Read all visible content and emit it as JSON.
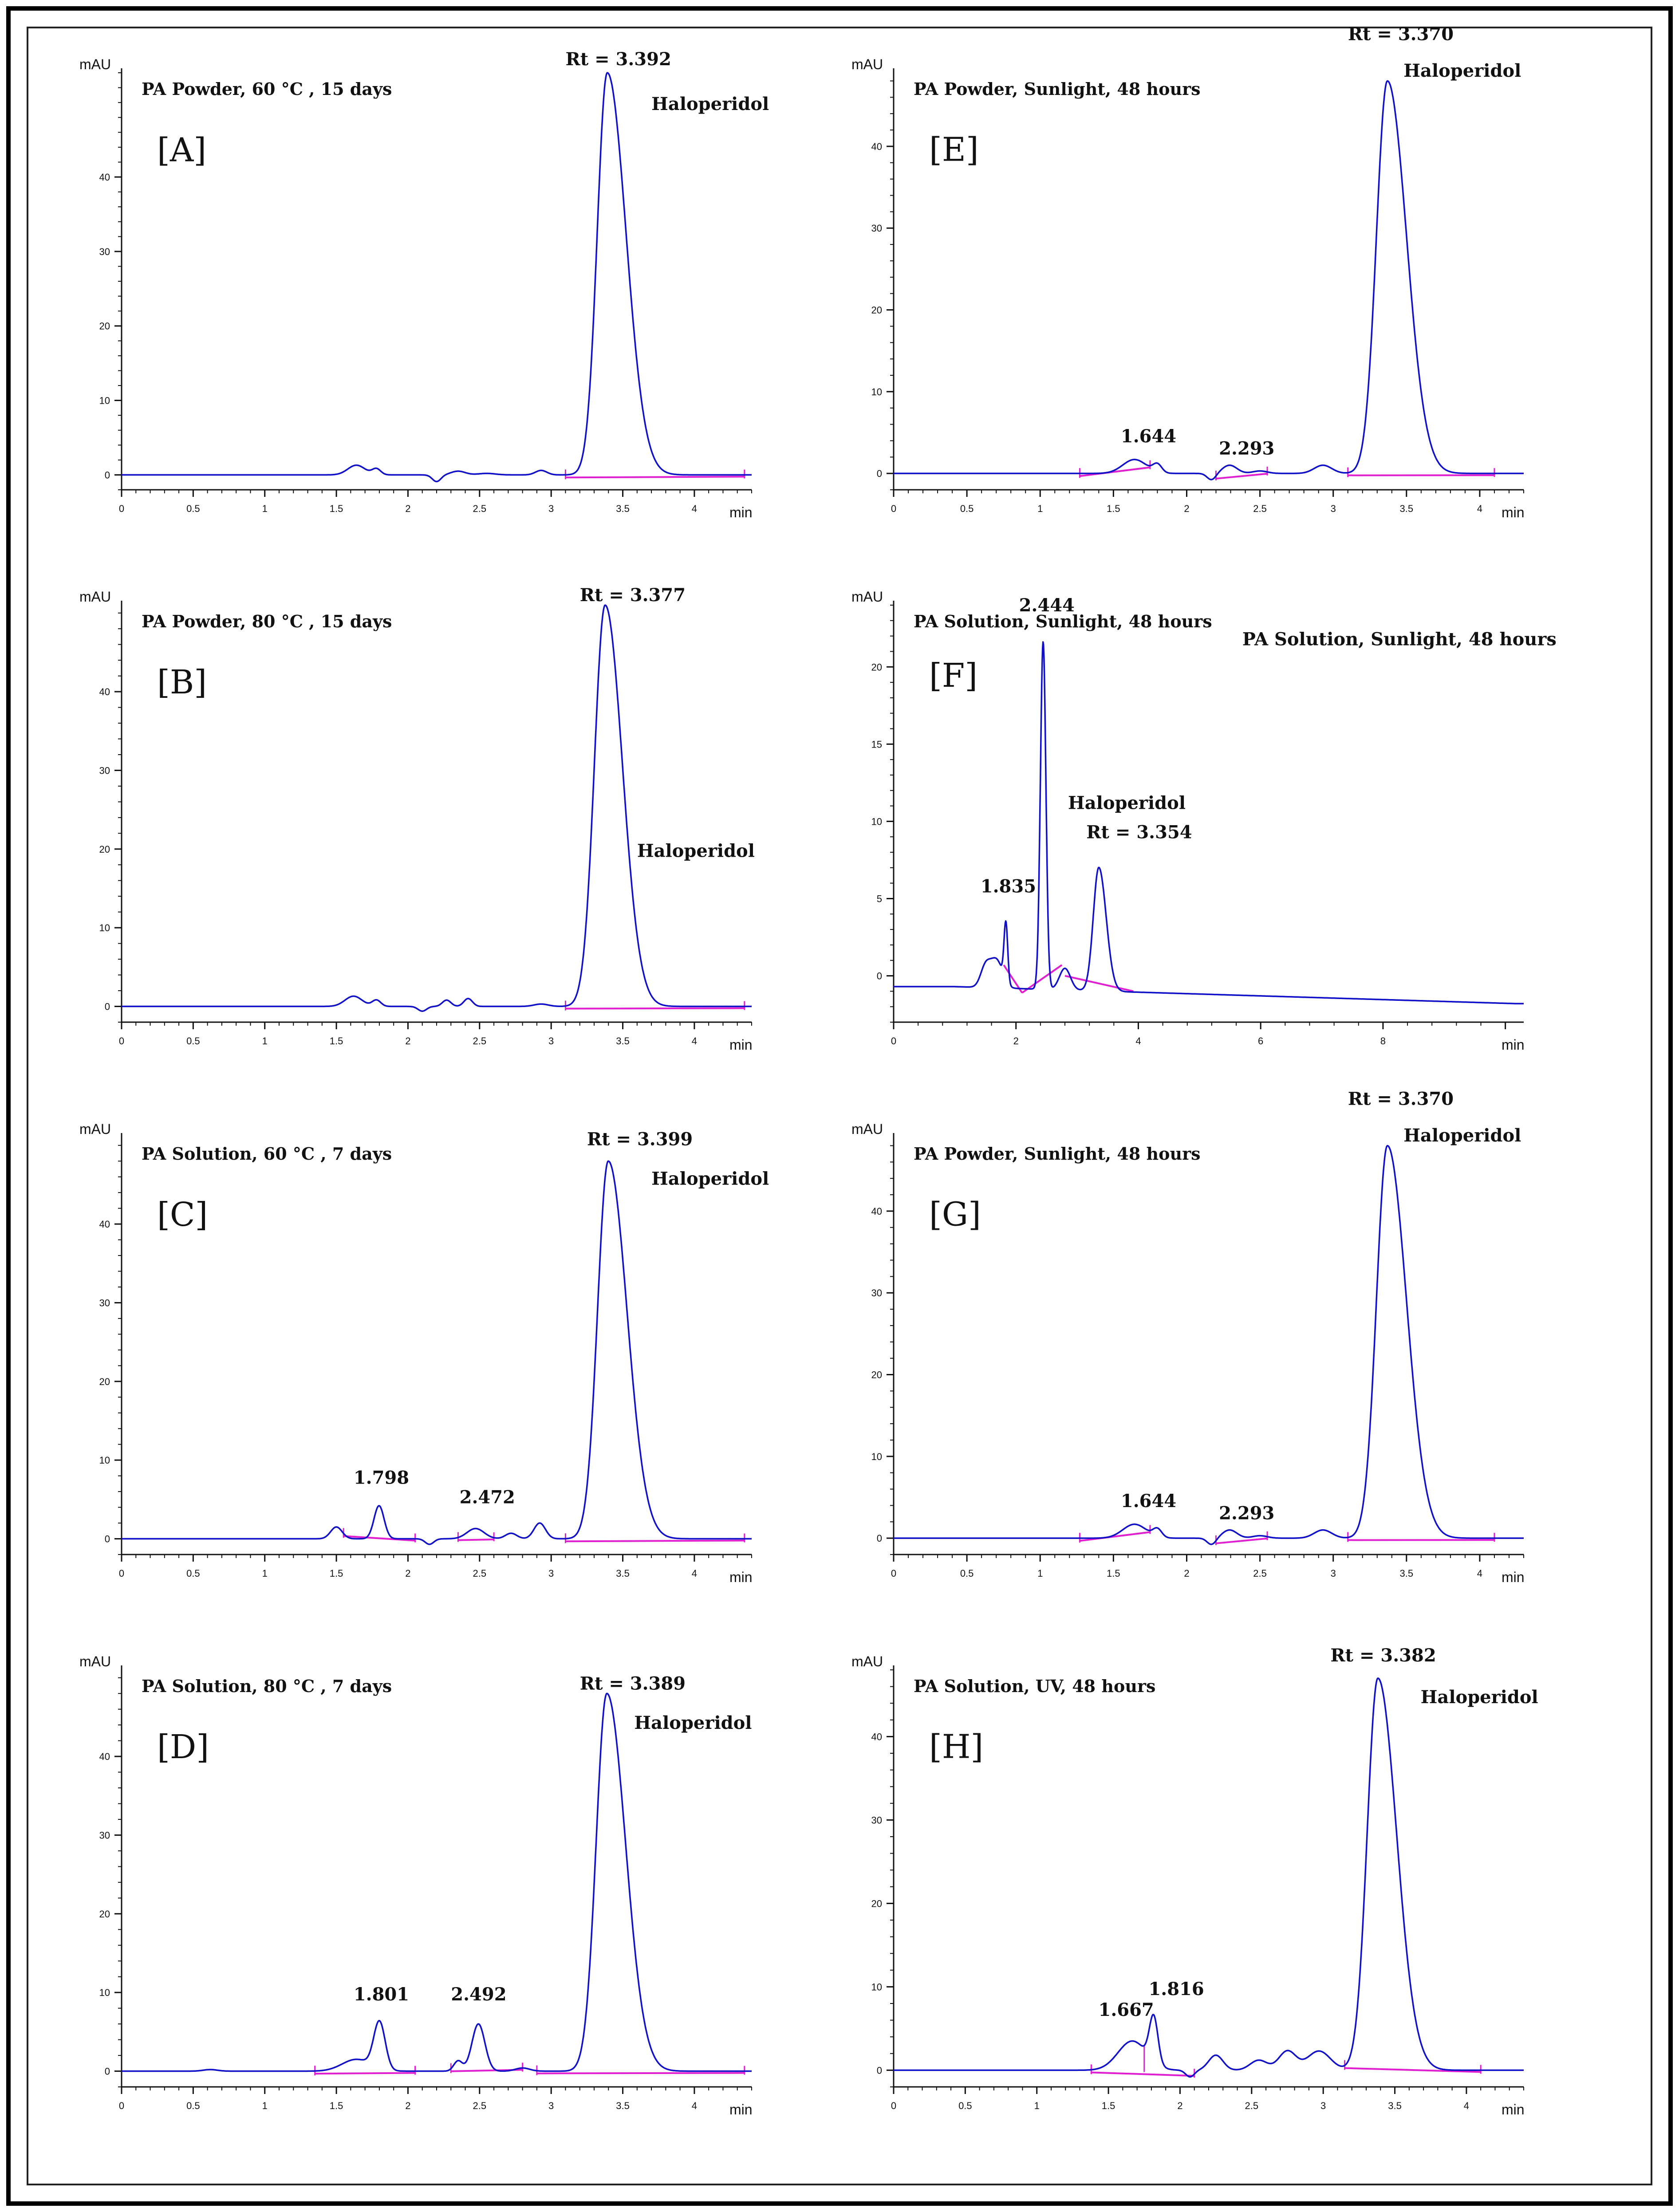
{
  "colors": {
    "trace": "#1010c8",
    "baseline": "#e020d0",
    "axis": "#111111",
    "text": "#111111"
  },
  "common": {
    "y_unit": "mAU",
    "x_unit": "min",
    "analyte": "Haloperidol",
    "rt_prefix": "Rt = "
  },
  "chart_data": [
    {
      "id": "A",
      "type": "line",
      "panel_label": "[A]",
      "title": "PA Powder, 60 °C , 15 days",
      "xlim": [
        0,
        4.4
      ],
      "ylim": [
        -2,
        54
      ],
      "xticks": [
        0,
        0.5,
        1,
        1.5,
        2,
        2.5,
        3,
        3.5,
        4
      ],
      "xtick_labels": [
        "0",
        "0.5",
        "1",
        "1.5",
        "2",
        "2.5",
        "3",
        "3.5",
        "4"
      ],
      "yticks": [
        0,
        10,
        20,
        30,
        40
      ],
      "ytick_labels": [
        "0",
        "10",
        "20",
        "30",
        "40"
      ],
      "baseline_value": 0,
      "drift": 0,
      "peaks": [
        {
          "rt": 1.64,
          "h": 1.3,
          "w": 0.06
        },
        {
          "rt": 1.78,
          "h": 0.8,
          "w": 0.03
        },
        {
          "rt": 2.2,
          "h": -0.9,
          "w": 0.03
        },
        {
          "rt": 2.35,
          "h": 0.5,
          "w": 0.05
        },
        {
          "rt": 2.55,
          "h": 0.2,
          "w": 0.06
        },
        {
          "rt": 2.93,
          "h": 0.6,
          "w": 0.04
        },
        {
          "rt": 3.392,
          "h": 54,
          "w": 0.07,
          "tail": 0.13
        }
      ],
      "integrations": [
        [
          3.1,
          4.35
        ]
      ],
      "annotations": [
        {
          "text": "Rt = 3.392",
          "x": 3.1,
          "y": 55,
          "size": 1.0
        },
        {
          "text": "Haloperidol",
          "x": 3.7,
          "y": 49,
          "size": 1.0
        }
      ]
    },
    {
      "id": "B",
      "type": "line",
      "panel_label": "[B]",
      "title": "PA Powder, 80 °C , 15 days",
      "xlim": [
        0,
        4.4
      ],
      "ylim": [
        -2,
        51
      ],
      "xticks": [
        0,
        0.5,
        1,
        1.5,
        2,
        2.5,
        3,
        3.5,
        4
      ],
      "xtick_labels": [
        "0",
        "0.5",
        "1",
        "1.5",
        "2",
        "2.5",
        "3",
        "3.5",
        "4"
      ],
      "yticks": [
        0,
        10,
        20,
        30,
        40
      ],
      "ytick_labels": [
        "0",
        "10",
        "20",
        "30",
        "40"
      ],
      "baseline_value": 0,
      "drift": 0,
      "peaks": [
        {
          "rt": 1.62,
          "h": 1.3,
          "w": 0.06
        },
        {
          "rt": 1.78,
          "h": 0.8,
          "w": 0.03
        },
        {
          "rt": 2.1,
          "h": -0.6,
          "w": 0.03
        },
        {
          "rt": 2.27,
          "h": 0.8,
          "w": 0.03
        },
        {
          "rt": 2.42,
          "h": 1.0,
          "w": 0.03
        },
        {
          "rt": 2.93,
          "h": 0.3,
          "w": 0.05
        },
        {
          "rt": 3.377,
          "h": 51,
          "w": 0.075,
          "tail": 0.12
        }
      ],
      "integrations": [
        [
          3.1,
          4.35
        ]
      ],
      "annotations": [
        {
          "text": "Rt = 3.377",
          "x": 3.2,
          "y": 51.5,
          "size": 1.0
        },
        {
          "text": "Haloperidol",
          "x": 3.6,
          "y": 19,
          "size": 1.0
        }
      ]
    },
    {
      "id": "C",
      "type": "line",
      "panel_label": "[C]",
      "title": "PA Solution, 60 °C , 7 days",
      "xlim": [
        0,
        4.4
      ],
      "ylim": [
        -2,
        51
      ],
      "xticks": [
        0,
        0.5,
        1,
        1.5,
        2,
        2.5,
        3,
        3.5,
        4
      ],
      "xtick_labels": [
        "0",
        "0.5",
        "1",
        "1.5",
        "2",
        "2.5",
        "3",
        "3.5",
        "4"
      ],
      "yticks": [
        0,
        10,
        20,
        30,
        40
      ],
      "ytick_labels": [
        "0",
        "10",
        "20",
        "30",
        "40"
      ],
      "baseline_value": 0,
      "drift": 0,
      "peaks": [
        {
          "rt": 1.5,
          "h": 1.5,
          "w": 0.04
        },
        {
          "rt": 1.798,
          "h": 4.2,
          "w": 0.035
        },
        {
          "rt": 2.15,
          "h": -0.7,
          "w": 0.03
        },
        {
          "rt": 2.472,
          "h": 1.3,
          "w": 0.06
        },
        {
          "rt": 2.72,
          "h": 0.7,
          "w": 0.04
        },
        {
          "rt": 2.92,
          "h": 2.0,
          "w": 0.04
        },
        {
          "rt": 3.399,
          "h": 48,
          "w": 0.075,
          "tail": 0.13
        }
      ],
      "integrations": [
        [
          1.55,
          2.05
        ],
        [
          2.35,
          2.6
        ],
        [
          3.1,
          4.35
        ]
      ],
      "annotations": [
        {
          "text": "Rt = 3.399",
          "x": 3.25,
          "y": 50,
          "size": 1.0
        },
        {
          "text": "Haloperidol",
          "x": 3.7,
          "y": 45,
          "size": 1.0
        },
        {
          "text": "1.798",
          "x": 1.62,
          "y": 7,
          "size": 1.0
        },
        {
          "text": "2.472",
          "x": 2.36,
          "y": 4.5,
          "size": 1.0
        }
      ]
    },
    {
      "id": "D",
      "type": "line",
      "panel_label": "[D]",
      "title": "PA Solution, 80 °C , 7 days",
      "xlim": [
        0,
        4.4
      ],
      "ylim": [
        -2,
        51
      ],
      "xticks": [
        0,
        0.5,
        1,
        1.5,
        2,
        2.5,
        3,
        3.5,
        4
      ],
      "xtick_labels": [
        "0",
        "0.5",
        "1",
        "1.5",
        "2",
        "2.5",
        "3",
        "3.5",
        "4"
      ],
      "yticks": [
        0,
        10,
        20,
        30,
        40
      ],
      "ytick_labels": [
        "0",
        "10",
        "20",
        "30",
        "40"
      ],
      "baseline_value": 0,
      "drift": 0,
      "peaks": [
        {
          "rt": 0.62,
          "h": 0.2,
          "w": 0.05
        },
        {
          "rt": 1.64,
          "h": 1.5,
          "w": 0.1
        },
        {
          "rt": 1.801,
          "h": 6.0,
          "w": 0.04
        },
        {
          "rt": 2.35,
          "h": 1.3,
          "w": 0.03
        },
        {
          "rt": 2.492,
          "h": 6.0,
          "w": 0.045
        },
        {
          "rt": 2.8,
          "h": 0.4,
          "w": 0.05
        },
        {
          "rt": 3.389,
          "h": 48,
          "w": 0.075,
          "tail": 0.13
        }
      ],
      "integrations": [
        [
          1.35,
          2.05
        ],
        [
          2.3,
          2.8
        ],
        [
          2.9,
          4.35
        ]
      ],
      "annotations": [
        {
          "text": "Rt = 3.389",
          "x": 3.2,
          "y": 48.5,
          "size": 1.0
        },
        {
          "text": "Haloperidol",
          "x": 3.58,
          "y": 43.5,
          "size": 1.0
        },
        {
          "text": "1.801",
          "x": 1.62,
          "y": 9,
          "size": 1.0
        },
        {
          "text": "2.492",
          "x": 2.3,
          "y": 9,
          "size": 1.0
        }
      ]
    },
    {
      "id": "E",
      "type": "line",
      "panel_label": "[E]",
      "title": "PA  Powder, Sunlight, 48 hours",
      "xlim": [
        0,
        4.3
      ],
      "ylim": [
        -2,
        49
      ],
      "xticks": [
        0,
        0.5,
        1,
        1.5,
        2,
        2.5,
        3,
        3.5,
        4
      ],
      "xtick_labels": [
        "0",
        "0.5",
        "1",
        "1.5",
        "2",
        "2.5",
        "3",
        "3.5",
        "4"
      ],
      "yticks": [
        0,
        10,
        20,
        30,
        40
      ],
      "ytick_labels": [
        "0",
        "10",
        "20",
        "30",
        "40"
      ],
      "baseline_value": 0,
      "drift": 0,
      "peaks": [
        {
          "rt": 1.644,
          "h": 1.7,
          "w": 0.08
        },
        {
          "rt": 1.8,
          "h": 1.0,
          "w": 0.03
        },
        {
          "rt": 2.17,
          "h": -0.8,
          "w": 0.03
        },
        {
          "rt": 2.293,
          "h": 1.0,
          "w": 0.05
        },
        {
          "rt": 2.5,
          "h": 0.3,
          "w": 0.05
        },
        {
          "rt": 2.93,
          "h": 1.0,
          "w": 0.06
        },
        {
          "rt": 3.37,
          "h": 48,
          "w": 0.075,
          "tail": 0.13
        }
      ],
      "integrations": [
        [
          1.27,
          1.75
        ],
        [
          2.2,
          2.55
        ],
        [
          3.1,
          4.1
        ]
      ],
      "annotations": [
        {
          "text": "Rt = 3.370",
          "x": 3.1,
          "y": 53,
          "size": 1.0
        },
        {
          "text": "Haloperidol",
          "x": 3.48,
          "y": 48.5,
          "size": 1.0
        },
        {
          "text": "1.644",
          "x": 1.55,
          "y": 3.8,
          "size": 1.0
        },
        {
          "text": "2.293",
          "x": 2.22,
          "y": 2.3,
          "size": 1.0
        }
      ]
    },
    {
      "id": "F",
      "type": "line",
      "panel_label": "[F]",
      "title": "PA Solution, Sunlight, 48 hours",
      "xlim": [
        0,
        10.3
      ],
      "ylim": [
        -3,
        24
      ],
      "xticks": [
        0,
        2,
        4,
        6,
        8,
        10
      ],
      "xtick_labels": [
        "0",
        "2",
        "4",
        "6",
        "8",
        ""
      ],
      "yticks": [
        0,
        5,
        10,
        15,
        20
      ],
      "ytick_labels": [
        "0",
        "5",
        "10",
        "15",
        "20"
      ],
      "baseline_value": -0.7,
      "drift": -0.12,
      "drift_min": -1.8,
      "peaks": [
        {
          "rt": 1.5,
          "h": 1.3,
          "w": 0.08
        },
        {
          "rt": 1.68,
          "h": 1.8,
          "w": 0.1
        },
        {
          "rt": 1.835,
          "h": 3.8,
          "w": 0.03
        },
        {
          "rt": 2.444,
          "h": 22.5,
          "w": 0.045
        },
        {
          "rt": 2.8,
          "h": 1.4,
          "w": 0.09
        },
        {
          "rt": 3.354,
          "h": 8.0,
          "w": 0.09,
          "tail": 0.12
        }
      ],
      "segments": [
        [
          1.8,
          0.7,
          2.1,
          -1.1
        ],
        [
          2.1,
          -1.1,
          2.75,
          0.7
        ],
        [
          2.8,
          0.0,
          3.92,
          -1.0
        ]
      ],
      "integrations": [],
      "annotations": [
        {
          "text": "2.444",
          "x": 2.05,
          "y": 23.6,
          "size": 1.0
        },
        {
          "text": "PA Solution, Sunlight, 48 hours",
          "x": 5.7,
          "y": 21.4,
          "size": 1.0
        },
        {
          "text": "Haloperidol",
          "x": 2.85,
          "y": 10.8,
          "size": 1.0
        },
        {
          "text": "Rt = 3.354",
          "x": 3.15,
          "y": 8.9,
          "size": 1.0
        },
        {
          "text": "1.835",
          "x": 1.42,
          "y": 5.4,
          "size": 1.0
        }
      ]
    },
    {
      "id": "G",
      "type": "line",
      "panel_label": "[G]",
      "title": "PA  Powder, Sunlight, 48 hours",
      "xlim": [
        0,
        4.3
      ],
      "ylim": [
        -2,
        49
      ],
      "xticks": [
        0,
        0.5,
        1,
        1.5,
        2,
        2.5,
        3,
        3.5,
        4
      ],
      "xtick_labels": [
        "0",
        "0.5",
        "1",
        "1.5",
        "2",
        "2.5",
        "3",
        "3.5",
        "4"
      ],
      "yticks": [
        0,
        10,
        20,
        30,
        40
      ],
      "ytick_labels": [
        "0",
        "10",
        "20",
        "30",
        "40"
      ],
      "baseline_value": 0,
      "drift": 0,
      "peaks": [
        {
          "rt": 1.644,
          "h": 1.7,
          "w": 0.08
        },
        {
          "rt": 1.8,
          "h": 1.0,
          "w": 0.03
        },
        {
          "rt": 2.17,
          "h": -0.8,
          "w": 0.03
        },
        {
          "rt": 2.293,
          "h": 1.0,
          "w": 0.05
        },
        {
          "rt": 2.5,
          "h": 0.3,
          "w": 0.05
        },
        {
          "rt": 2.93,
          "h": 1.0,
          "w": 0.06
        },
        {
          "rt": 3.37,
          "h": 48,
          "w": 0.075,
          "tail": 0.13
        }
      ],
      "integrations": [
        [
          1.27,
          1.75
        ],
        [
          2.2,
          2.55
        ],
        [
          3.1,
          4.1
        ]
      ],
      "annotations": [
        {
          "text": "Rt = 3.370",
          "x": 3.1,
          "y": 53,
          "size": 1.0
        },
        {
          "text": "Haloperidol",
          "x": 3.48,
          "y": 48.5,
          "size": 1.0
        },
        {
          "text": "1.644",
          "x": 1.55,
          "y": 3.8,
          "size": 1.0
        },
        {
          "text": "2.293",
          "x": 2.22,
          "y": 2.3,
          "size": 1.0
        }
      ]
    },
    {
      "id": "H",
      "type": "line",
      "panel_label": "[H]",
      "title": "PA Solution, UV, 48 hours",
      "xlim": [
        0,
        4.4
      ],
      "ylim": [
        -2,
        48
      ],
      "xticks": [
        0,
        0.5,
        1,
        1.5,
        2,
        2.5,
        3,
        3.5,
        4
      ],
      "xtick_labels": [
        "0",
        "0.5",
        "1",
        "1.5",
        "2",
        "2.5",
        "3",
        "3.5",
        "4"
      ],
      "yticks": [
        0,
        10,
        20,
        30,
        40
      ],
      "ytick_labels": [
        "0",
        "10",
        "20",
        "30",
        "40"
      ],
      "baseline_value": 0,
      "drift": 0,
      "peaks": [
        {
          "rt": 1.667,
          "h": 3.5,
          "w": 0.1
        },
        {
          "rt": 1.816,
          "h": 5.5,
          "w": 0.03
        },
        {
          "rt": 2.07,
          "h": -0.8,
          "w": 0.03
        },
        {
          "rt": 2.25,
          "h": 1.8,
          "w": 0.05
        },
        {
          "rt": 2.55,
          "h": 1.2,
          "w": 0.06
        },
        {
          "rt": 2.75,
          "h": 2.3,
          "w": 0.06
        },
        {
          "rt": 2.97,
          "h": 2.3,
          "w": 0.08
        },
        {
          "rt": 3.382,
          "h": 47,
          "w": 0.075,
          "tail": 0.13
        }
      ],
      "integrations": [
        [
          1.38,
          2.1
        ],
        [
          3.15,
          4.1
        ]
      ],
      "dividers": [
        1.75
      ],
      "annotations": [
        {
          "text": "Rt = 3.382",
          "x": 3.05,
          "y": 49,
          "size": 1.0
        },
        {
          "text": "Haloperidol",
          "x": 3.68,
          "y": 44,
          "size": 1.0
        },
        {
          "text": "1.667",
          "x": 1.43,
          "y": 6.5,
          "size": 1.0
        },
        {
          "text": "1.816",
          "x": 1.78,
          "y": 9,
          "size": 1.0
        }
      ]
    }
  ]
}
